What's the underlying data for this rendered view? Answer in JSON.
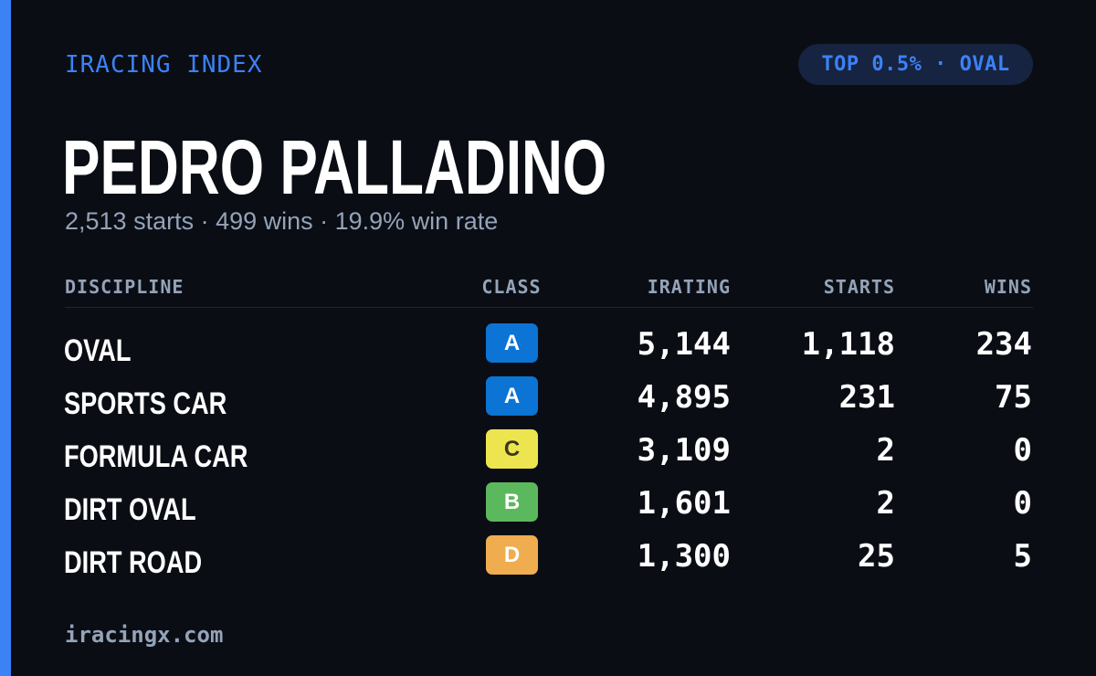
{
  "header": {
    "brand": "IRACING INDEX",
    "rank_badge": "TOP 0.5% · OVAL"
  },
  "driver": {
    "name": "PEDRO PALLADINO",
    "summary": "2,513 starts · 499 wins · 19.9% win rate"
  },
  "table": {
    "columns": {
      "discipline": "DISCIPLINE",
      "class": "CLASS",
      "irating": "IRATING",
      "starts": "STARTS",
      "wins": "WINS"
    },
    "rows": [
      {
        "discipline": "OVAL",
        "class": "A",
        "class_color": "#0b74d4",
        "class_text_color": "#ffffff",
        "irating": "5,144",
        "starts": "1,118",
        "wins": "234"
      },
      {
        "discipline": "SPORTS CAR",
        "class": "A",
        "class_color": "#0b74d4",
        "class_text_color": "#ffffff",
        "irating": "4,895",
        "starts": "231",
        "wins": "75"
      },
      {
        "discipline": "FORMULA CAR",
        "class": "C",
        "class_color": "#ece54f",
        "class_text_color": "#3a3a1a",
        "irating": "3,109",
        "starts": "2",
        "wins": "0"
      },
      {
        "discipline": "DIRT OVAL",
        "class": "B",
        "class_color": "#5cb85c",
        "class_text_color": "#ffffff",
        "irating": "1,601",
        "starts": "2",
        "wins": "0"
      },
      {
        "discipline": "DIRT ROAD",
        "class": "D",
        "class_color": "#efad4f",
        "class_text_color": "#ffffff",
        "irating": "1,300",
        "starts": "25",
        "wins": "5"
      }
    ]
  },
  "footer": {
    "site": "iracingx.com"
  },
  "colors": {
    "background": "#0a0d14",
    "accent": "#3b82f6",
    "muted_text": "#94a3b8",
    "badge_background": "#162341"
  }
}
